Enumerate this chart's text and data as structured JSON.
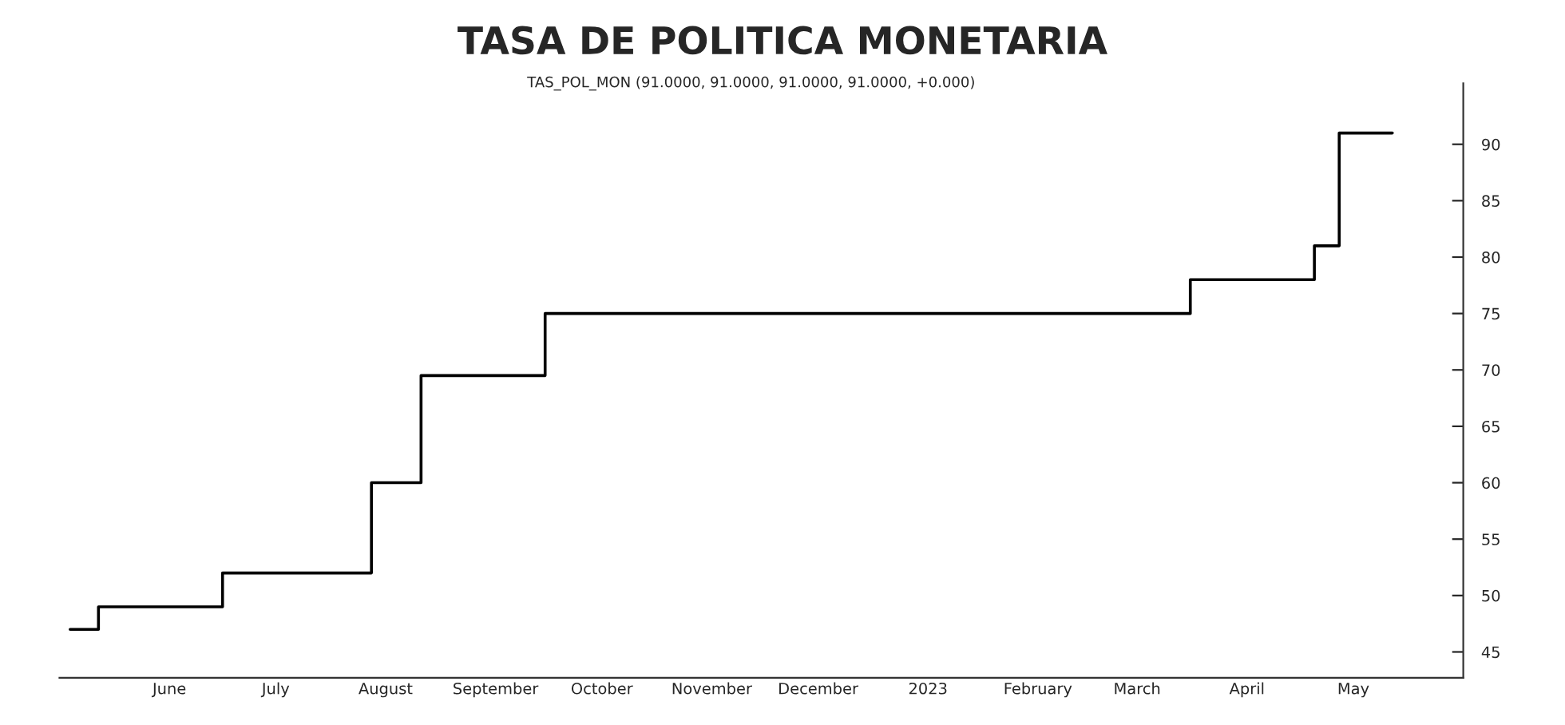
{
  "chart_data": {
    "type": "step",
    "title": "TASA DE POLITICA MONETARIA",
    "subtitle": "TAS_POL_MON (91.0000, 91.0000, 91.0000, 91.0000, +0.000)",
    "x": [
      "2022-05-04",
      "2022-05-12",
      "2022-06-16",
      "2022-07-28",
      "2022-08-11",
      "2022-09-15",
      "2023-03-16",
      "2023-04-20",
      "2023-04-27",
      "2023-05-12"
    ],
    "series": [
      {
        "color": "#000000",
        "values": [
          47,
          49,
          52,
          60,
          69.5,
          75,
          78,
          81,
          91,
          91
        ]
      }
    ],
    "xlim": [
      "2022-05-01",
      "2023-06-01"
    ],
    "xticks": [
      {
        "value": "2022-06-01",
        "label": "June"
      },
      {
        "value": "2022-07-01",
        "label": "July"
      },
      {
        "value": "2022-08-01",
        "label": "August"
      },
      {
        "value": "2022-09-01",
        "label": "September"
      },
      {
        "value": "2022-10-01",
        "label": "October"
      },
      {
        "value": "2022-11-01",
        "label": "November"
      },
      {
        "value": "2022-12-01",
        "label": "December"
      },
      {
        "value": "2023-01-01",
        "label": "2023"
      },
      {
        "value": "2023-02-01",
        "label": "February"
      },
      {
        "value": "2023-03-01",
        "label": "March"
      },
      {
        "value": "2023-04-01",
        "label": "April"
      },
      {
        "value": "2023-05-01",
        "label": "May"
      }
    ],
    "ylim": [
      42.7,
      95.4
    ],
    "yticks": [
      45,
      50,
      55,
      60,
      65,
      70,
      75,
      80,
      85,
      90
    ],
    "grid": false,
    "line_style": "solid",
    "marker": "none"
  }
}
